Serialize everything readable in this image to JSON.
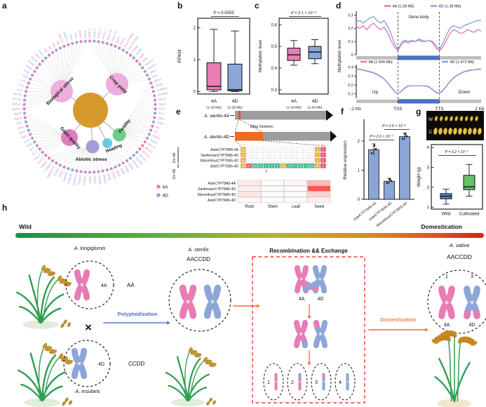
{
  "labels": {
    "a": "a",
    "b": "b",
    "c": "c",
    "d": "d",
    "e": "e",
    "f": "f",
    "g": "g",
    "h": "h"
  },
  "colors": {
    "pink_4A": "#e87cb5",
    "blue_4D": "#8ca6d8",
    "hub": "#d6992e",
    "wild_box": "#5b88cc",
    "cultivated_box": "#6abf6a",
    "bar_blue": "#8aa5d6",
    "track_gray": "#bdbdbd",
    "track_blue": "#4a70c4",
    "gene_gray": "#9c9c9c",
    "orange_block": "#ed6a1f",
    "red_sliver": "#e84b2a",
    "red_dashed": "#e8413c",
    "arrow_orange": "#ee8150",
    "arrow_blue": "#5b78c8",
    "aln_gold": "#e6b33c",
    "aln_red": "#e2556a",
    "aln_green": "#4fbd8c",
    "aln_teal": "#45b9a0"
  },
  "panel_a": {
    "legend": [
      {
        "label": "4A",
        "color": "#e87cb5"
      },
      {
        "label": "4D",
        "color": "#8ca6d8"
      }
    ],
    "categories": [
      {
        "label": "Crop yield",
        "color": "#eba4da",
        "count": 18
      },
      {
        "label": "Fertility",
        "color": "#57c87b",
        "count": 20
      },
      {
        "label": "Heading",
        "color": "#52c5de",
        "count": 6
      },
      {
        "label": "Abiotic stress",
        "color": "#9b8fd0",
        "count": 14
      },
      {
        "label": "Grain quality",
        "color": "#d86cb4",
        "count": 12
      },
      {
        "label": "Biological stress",
        "color": "#eba4da",
        "count": 24
      }
    ],
    "genes": [
      [
        "Ghd7.1",
        "A"
      ],
      [
        "Ghd7.1",
        "D"
      ],
      [
        "PTB1-1",
        "A"
      ],
      [
        "PTB1-1",
        "D"
      ],
      [
        "Ehd1-A1",
        "A"
      ],
      [
        "Ehd1-A1",
        "D"
      ],
      [
        "DEP1",
        "A"
      ],
      [
        "DEP1",
        "D"
      ],
      [
        "OsCYP78A5",
        "A"
      ],
      [
        "OsCYP78A5",
        "D"
      ],
      [
        "TGW6",
        "A"
      ],
      [
        "TGW6",
        "D"
      ],
      [
        "GW5",
        "A"
      ],
      [
        "GW5",
        "D"
      ],
      [
        "PROG1",
        "A"
      ],
      [
        "PROG1",
        "D"
      ],
      [
        "IPA1",
        "A"
      ],
      [
        "IPA1",
        "D"
      ],
      [
        "MFS1",
        "A"
      ],
      [
        "MFS1",
        "D"
      ],
      [
        "OsRRM",
        "A"
      ],
      [
        "OsRRM",
        "D"
      ],
      [
        "AGL6",
        "A"
      ],
      [
        "AGL6",
        "D"
      ],
      [
        "TH1",
        "A"
      ],
      [
        "TH1",
        "D"
      ],
      [
        "LRK1",
        "A"
      ],
      [
        "LRK1",
        "D"
      ],
      [
        "D2",
        "A"
      ],
      [
        "D2",
        "D"
      ],
      [
        "RGB1",
        "A"
      ],
      [
        "RGB1",
        "D"
      ],
      [
        "Rht-A1",
        "A"
      ],
      [
        "Rht-A1",
        "A"
      ],
      [
        "Rht-A1",
        "A"
      ],
      [
        "Rht-B1",
        "D"
      ],
      [
        "Rht-B1",
        "D"
      ],
      [
        "Rht-B1",
        "D"
      ],
      [
        "Hd3a",
        "A"
      ],
      [
        "Hd3a",
        "D"
      ],
      [
        "Ehd2",
        "A"
      ],
      [
        "Ehd2",
        "D"
      ],
      [
        "Ghd8",
        "A"
      ],
      [
        "Ghd8",
        "D"
      ],
      [
        "DREB2",
        "A"
      ],
      [
        "DREB2",
        "D"
      ],
      [
        "HAN1",
        "A"
      ],
      [
        "HAN1",
        "D"
      ],
      [
        "TOND1",
        "A"
      ],
      [
        "TOND1",
        "D"
      ],
      [
        "CsMYB1",
        "A"
      ],
      [
        "CsMYB1",
        "D"
      ],
      [
        "TaNPF2",
        "D"
      ],
      [
        "PhyC",
        "A"
      ],
      [
        "CTB4a",
        "D"
      ],
      [
        "TaNAC071",
        "A"
      ],
      [
        "TOND1",
        "D"
      ],
      [
        "TOND1",
        "A"
      ],
      [
        "GL3.2",
        "A"
      ],
      [
        "GL3.2",
        "D"
      ],
      [
        "GL7",
        "A"
      ],
      [
        "GL7",
        "D"
      ],
      [
        "GS3",
        "A"
      ],
      [
        "GS3",
        "D"
      ],
      [
        "GW2",
        "A"
      ],
      [
        "GW2",
        "D"
      ],
      [
        "PPO",
        "A"
      ],
      [
        "PPO",
        "D"
      ],
      [
        "Bph9",
        "A"
      ],
      [
        "Bph9",
        "D"
      ],
      [
        "Bph14",
        "A"
      ],
      [
        "Bph14",
        "D"
      ],
      [
        "bsr-d1",
        "A"
      ],
      [
        "bsr-d1",
        "D"
      ],
      [
        "Lr21",
        "A"
      ],
      [
        "Lr21",
        "D"
      ],
      [
        "Lr10",
        "A"
      ],
      [
        "Lr10",
        "D"
      ],
      [
        "Psd2",
        "A"
      ],
      [
        "Psd2",
        "D"
      ],
      [
        "RGA5",
        "A"
      ],
      [
        "RGA5",
        "D"
      ],
      [
        "Xa21",
        "A"
      ],
      [
        "Xa21",
        "D"
      ],
      [
        "Pi9",
        "A"
      ],
      [
        "Pi9",
        "D"
      ],
      [
        "Pib",
        "A"
      ],
      [
        "Pib",
        "D"
      ],
      [
        "OsDT11",
        "A"
      ],
      [
        "OsDT11",
        "D"
      ],
      [
        "Pi21",
        "A"
      ],
      [
        "Pi21",
        "D"
      ],
      [
        "RGA4",
        "A"
      ],
      [
        "RGA4",
        "D"
      ]
    ]
  },
  "chart_data": [
    {
      "id": "b",
      "type": "box",
      "title": "",
      "ylabel": "FPKM",
      "p_value": "P = 0.0053",
      "yticks": [
        0,
        1,
        2
      ],
      "ylim": [
        -0.08,
        2.3
      ],
      "groups": [
        {
          "label": "4A",
          "sublabel": "(1-28 Mb)",
          "color": "#e87cb5",
          "whislo": 0,
          "q1": 0.05,
          "med": 0.16,
          "q3": 0.9,
          "whishi": 1.95
        },
        {
          "label": "4D",
          "sublabel": "(1-28 Mb)",
          "color": "#8ca6d8",
          "whislo": 0,
          "q1": 0.02,
          "med": 0.06,
          "q3": 0.86,
          "whishi": 1.9
        }
      ]
    },
    {
      "id": "c",
      "type": "box",
      "title": "",
      "ylabel": "Methylation level",
      "p_value": "P = 2.1 × 10⁻⁴",
      "yticks": [
        0.3,
        0.4,
        0.5,
        0.6
      ],
      "ylim": [
        0.28,
        0.63
      ],
      "groups": [
        {
          "label": "4A",
          "sublabel": "(1-28 Mb)",
          "color": "#e87cb5",
          "whislo": 0.413,
          "q1": 0.435,
          "med": 0.461,
          "q3": 0.492,
          "whishi": 0.527
        },
        {
          "label": "4D",
          "sublabel": "(1-28 Mb)",
          "color": "#8ca6d8",
          "whislo": 0.42,
          "q1": 0.443,
          "med": 0.474,
          "q3": 0.5,
          "whishi": 0.531
        }
      ]
    },
    {
      "id": "d",
      "type": "line",
      "ylabel": "Methylation level",
      "xticklabels": [
        "-2 Kb",
        "TSS",
        "TTS",
        "2 Kb"
      ],
      "tss_index": 12,
      "tts_index": 24,
      "subplots": [
        {
          "annotation": "Gene body",
          "yticks": [
            0,
            0.1,
            0.2,
            0.3
          ],
          "ylim": [
            0,
            0.33
          ],
          "legend": [
            {
              "label": "4A (1-28 Mb)",
              "color": "#e87cb5"
            },
            {
              "label": "4D (1-28 Mb)",
              "color": "#8ca6d8"
            }
          ],
          "series": [
            {
              "name": "4A (1-28 Mb)",
              "color": "#e87cb5",
              "values": [
                0.22,
                0.2,
                0.22,
                0.19,
                0.22,
                0.24,
                0.21,
                0.19,
                0.21,
                0.17,
                0.11,
                0.06,
                0.03,
                0.08,
                0.1,
                0.09,
                0.1,
                0.1,
                0.11,
                0.1,
                0.1,
                0.11,
                0.09,
                0.05,
                0.03,
                0.06,
                0.11,
                0.16,
                0.19,
                0.18,
                0.16,
                0.17,
                0.19,
                0.18,
                0.17,
                0.19,
                0.18
              ]
            },
            {
              "name": "4D (1-28 Mb)",
              "color": "#8ca6d8",
              "values": [
                0.25,
                0.26,
                0.24,
                0.26,
                0.28,
                0.29,
                0.26,
                0.24,
                0.26,
                0.22,
                0.16,
                0.09,
                0.04,
                0.09,
                0.11,
                0.1,
                0.11,
                0.1,
                0.12,
                0.11,
                0.1,
                0.11,
                0.1,
                0.07,
                0.04,
                0.09,
                0.15,
                0.2,
                0.22,
                0.21,
                0.2,
                0.22,
                0.23,
                0.24,
                0.25,
                0.26,
                0.26
              ]
            }
          ]
        },
        {
          "annotations": [
            "Up",
            "Down"
          ],
          "yticks": [
            0.1,
            0.2,
            0.3,
            0.4
          ],
          "ylim": [
            0.05,
            0.43
          ],
          "legend": [
            {
              "label": "4A (1-504 Mb)",
              "color": "#e87cb5"
            },
            {
              "label": "4D (1-472 Mb)",
              "color": "#8ca6d8"
            }
          ],
          "series": [
            {
              "name": "4A (1-504 Mb)",
              "color": "#e87cb5",
              "values": [
                0.38,
                0.38,
                0.37,
                0.36,
                0.35,
                0.34,
                0.32,
                0.3,
                0.27,
                0.23,
                0.18,
                0.13,
                0.1,
                0.13,
                0.17,
                0.19,
                0.19,
                0.19,
                0.19,
                0.19,
                0.19,
                0.18,
                0.15,
                0.12,
                0.11,
                0.14,
                0.19,
                0.24,
                0.28,
                0.31,
                0.33,
                0.35,
                0.36,
                0.37,
                0.37,
                0.38,
                0.38
              ]
            },
            {
              "name": "4D (1-472 Mb)",
              "color": "#8ca6d8",
              "values": [
                0.375,
                0.375,
                0.365,
                0.355,
                0.345,
                0.335,
                0.315,
                0.295,
                0.265,
                0.225,
                0.175,
                0.125,
                0.1,
                0.125,
                0.165,
                0.185,
                0.19,
                0.19,
                0.19,
                0.19,
                0.185,
                0.175,
                0.145,
                0.115,
                0.105,
                0.135,
                0.185,
                0.235,
                0.275,
                0.305,
                0.325,
                0.345,
                0.355,
                0.365,
                0.37,
                0.375,
                0.375
              ]
            }
          ]
        }
      ]
    },
    {
      "id": "f",
      "type": "bar",
      "ylabel": "Relative expression",
      "yticks": [
        0,
        1,
        2
      ],
      "ylim": [
        0,
        2.6
      ],
      "categories": [
        "AsteCYP78A5-4A",
        "AsteCYP78A5-4D",
        "MarvellousCYP78A5-4D"
      ],
      "values": [
        1.7,
        0.62,
        2.15
      ],
      "errors": [
        0.2,
        0.1,
        0.12
      ],
      "bar_color": "#8aa5d6",
      "p_values": [
        {
          "label": "P = 2.6 × 10⁻⁷",
          "from": 0,
          "to": 1
        },
        {
          "label": "P = 2.9 × 10⁻⁸",
          "from": 1,
          "to": 2
        }
      ]
    },
    {
      "id": "g",
      "type": "box",
      "ylabel": "Weight (g)",
      "p_value": "P = 3.2 × 10⁻⁷",
      "yticks": [
        1,
        2,
        3,
        4
      ],
      "ylim": [
        0.9,
        4.15
      ],
      "photo_rows": [
        {
          "label": "W",
          "seeds": 9
        },
        {
          "label": "C",
          "seeds": 10
        }
      ],
      "groups": [
        {
          "label": "Wild",
          "color": "#5b88cc",
          "whislo": 1.15,
          "q1": 1.42,
          "med": 1.55,
          "q3": 1.68,
          "whishi": 1.9
        },
        {
          "label": "Cultivated",
          "color": "#6abf6a",
          "whislo": 1.55,
          "q1": 1.88,
          "med": 2.02,
          "q3": 2.6,
          "whishi": 3.15
        }
      ]
    }
  ],
  "panel_e": {
    "gene_models": [
      {
        "species": "A. sterilis",
        "suffix": "-4A"
      },
      {
        "species": "A. sterilis",
        "suffix": "-4D"
      }
    ],
    "deletion_label": "36bp Deletion",
    "group_labels": [
      "Ori-4A",
      "Ori-4D"
    ],
    "consensus_seq": "M············VE",
    "alignment_rows": [
      {
        "name": "AsteCYP78A5-4A",
        "seq": "M------------VE"
      },
      {
        "name": "SanfensanCYP78A5-4D",
        "seq": "M------------VE"
      },
      {
        "name": "MarvellousCYP78A5-4D",
        "seq": "M------------VE"
      },
      {
        "name": "AsteCYP78A5-4D",
        "seq": "MDGATTTMATATGME"
      }
    ],
    "position_tick": "5",
    "heatmap": {
      "rows": [
        "AsteCYP78A5-4A",
        "SanfensanCYP78A5-4D",
        "MarvellousCYP78A5-4D",
        "AsteCYP78A5-4D"
      ],
      "columns": [
        "Root",
        "Stem",
        "Leaf",
        "Seed"
      ],
      "values": [
        [
          0.1,
          0.02,
          0.04,
          0.35
        ],
        [
          0.08,
          0.02,
          0.02,
          0.85
        ],
        [
          0.12,
          0.02,
          0.02,
          0.22
        ],
        [
          0.03,
          0.02,
          0.02,
          0.08
        ]
      ]
    }
  },
  "panel_h": {
    "wild_label": "Wild",
    "domestication_label": "Domestication",
    "species": [
      {
        "name": "A. longiglumis",
        "genome": "AA",
        "chromosome": "4A"
      },
      {
        "name": "A. insularis",
        "genome": "CCDD",
        "chromosome": "4D"
      },
      {
        "name": "A. sterilis",
        "genome": "AACCDD"
      },
      {
        "name": "A. sativa",
        "genome": "AACCDD",
        "top_numbers": [
          "1",
          "3"
        ],
        "chromosomes": [
          "4A",
          "4D"
        ]
      }
    ],
    "cross_symbol": "×",
    "polyploidization_label": "Polyploidization",
    "recombination_title": "Recombination && Exchange",
    "recombination_chromosomes": [
      "4A",
      "4D"
    ],
    "gamete_numbers": [
      "1",
      "2",
      "3",
      "4"
    ],
    "domestication_arrow_label": "Domestication"
  }
}
